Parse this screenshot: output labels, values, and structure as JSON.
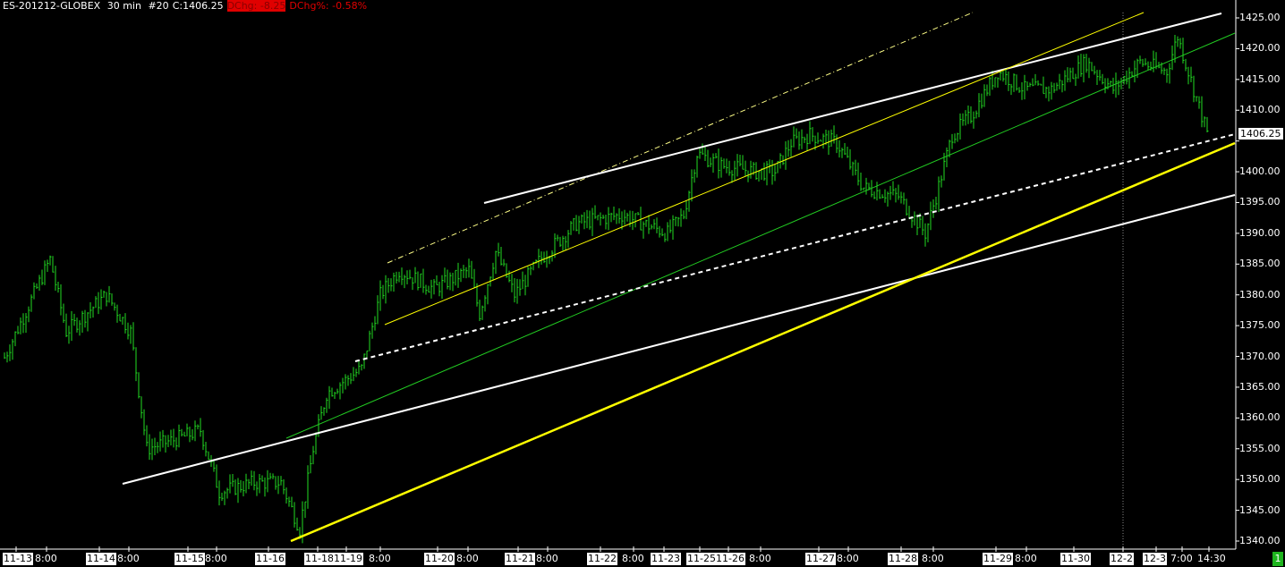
{
  "header": {
    "symbol": "ES-201212-GLOBEX",
    "interval": "30 min",
    "bar_no": "#20",
    "close": "C:1406.25",
    "dchg": "DChg: -8.25",
    "dchg_pct": "DChg%: -0.58%"
  },
  "last_price_label": "1406.25",
  "page_indicator": "1",
  "colors": {
    "bars": "#22dd22",
    "trend_white": "#ffffff",
    "trend_yellow": "#ffff00",
    "trend_green": "#22cc22",
    "change": "#e00000"
  },
  "chart_data": {
    "type": "bar",
    "ylim": [
      1338,
      1427
    ],
    "yticks": [
      "1340.00",
      "1345.00",
      "1350.00",
      "1355.00",
      "1360.00",
      "1365.00",
      "1370.00",
      "1375.00",
      "1380.00",
      "1385.00",
      "1390.00",
      "1395.00",
      "1400.00",
      "1405.00",
      "1410.00",
      "1415.00",
      "1420.00",
      "1425.00"
    ],
    "xticks": [
      {
        "label": "11-13",
        "kind": "date"
      },
      {
        "label": "8:00",
        "kind": "time"
      },
      {
        "label": "11-14",
        "kind": "date"
      },
      {
        "label": "8:00",
        "kind": "time"
      },
      {
        "label": "11-15",
        "kind": "date"
      },
      {
        "label": "8:00",
        "kind": "time"
      },
      {
        "label": "11-16",
        "kind": "date"
      },
      {
        "label": "11-18",
        "kind": "date"
      },
      {
        "label": "11-19",
        "kind": "date"
      },
      {
        "label": "8:00",
        "kind": "time"
      },
      {
        "label": "11-20",
        "kind": "date"
      },
      {
        "label": "8:00",
        "kind": "time"
      },
      {
        "label": "11-21",
        "kind": "date"
      },
      {
        "label": "8:00",
        "kind": "time"
      },
      {
        "label": "11-22",
        "kind": "date"
      },
      {
        "label": "8:00",
        "kind": "time"
      },
      {
        "label": "11-23",
        "kind": "date"
      },
      {
        "label": "11-25",
        "kind": "date"
      },
      {
        "label": "11-26",
        "kind": "date"
      },
      {
        "label": "8:00",
        "kind": "time"
      },
      {
        "label": "11-27",
        "kind": "date"
      },
      {
        "label": "8:00",
        "kind": "time"
      },
      {
        "label": "11-28",
        "kind": "date"
      },
      {
        "label": "8:00",
        "kind": "time"
      },
      {
        "label": "11-29",
        "kind": "date"
      },
      {
        "label": "8:00",
        "kind": "time"
      },
      {
        "label": "11-30",
        "kind": "date"
      },
      {
        "label": "12-2",
        "kind": "date"
      },
      {
        "label": "12-3",
        "kind": "date"
      },
      {
        "label": "7:00",
        "kind": "time"
      },
      {
        "label": "14:30",
        "kind": "time"
      }
    ],
    "price_path": [
      [
        0,
        1369.8
      ],
      [
        17,
        1385.8
      ],
      [
        23,
        1374
      ],
      [
        38,
        1380
      ],
      [
        47,
        1374
      ],
      [
        53,
        1355
      ],
      [
        67,
        1357
      ],
      [
        73,
        1358
      ],
      [
        80,
        1348
      ],
      [
        93,
        1349.5
      ],
      [
        103,
        1349.5
      ],
      [
        110,
        1342
      ],
      [
        115,
        1355
      ],
      [
        120,
        1364
      ],
      [
        133,
        1368
      ],
      [
        140,
        1380
      ],
      [
        147,
        1384
      ],
      [
        160,
        1381
      ],
      [
        173,
        1384
      ],
      [
        177,
        1377
      ],
      [
        183,
        1387
      ],
      [
        190,
        1380
      ],
      [
        200,
        1386
      ],
      [
        213,
        1391.6
      ],
      [
        230,
        1393
      ],
      [
        247,
        1390
      ],
      [
        253,
        1393
      ],
      [
        258,
        1403
      ],
      [
        267,
        1401
      ],
      [
        280,
        1400
      ],
      [
        287,
        1400
      ],
      [
        293,
        1404.7
      ],
      [
        300,
        1406
      ],
      [
        310,
        1404.7
      ],
      [
        320,
        1397.4
      ],
      [
        333,
        1396
      ],
      [
        343,
        1390
      ],
      [
        347,
        1396
      ],
      [
        353,
        1406
      ],
      [
        360,
        1409
      ],
      [
        370,
        1416.3
      ],
      [
        380,
        1413.4
      ],
      [
        390,
        1413.4
      ],
      [
        403,
        1417.8
      ],
      [
        413,
        1413.4
      ],
      [
        423,
        1417.8
      ],
      [
        433,
        1416.3
      ],
      [
        437,
        1422
      ],
      [
        443,
        1413.4
      ],
      [
        448,
        1406.25
      ]
    ],
    "last": 1406.25
  }
}
